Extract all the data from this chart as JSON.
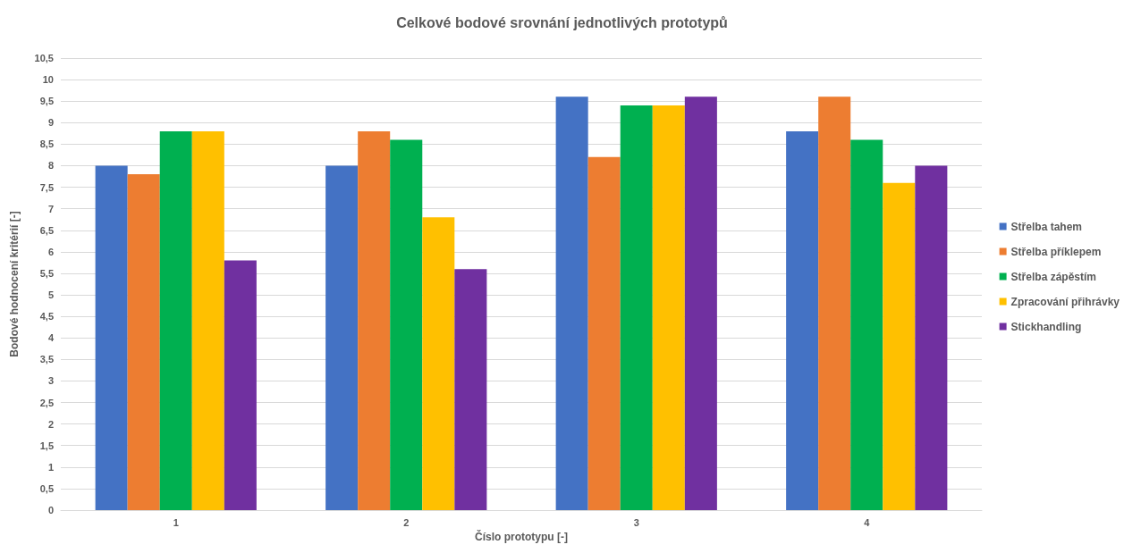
{
  "chart_data": {
    "type": "bar",
    "title": "Celkové bodové srovnání jednotlivých prototypů",
    "xlabel": "Číslo prototypu [-]",
    "ylabel": "Bodové hodnocení kritérií [-]",
    "categories": [
      "1",
      "2",
      "3",
      "4"
    ],
    "series": [
      {
        "name": "Střelba tahem",
        "color": "#4472c4",
        "values": [
          8,
          8,
          9.6,
          8.8
        ]
      },
      {
        "name": "Střelba příklepem",
        "color": "#ed7d31",
        "values": [
          7.8,
          8.8,
          8.2,
          9.6
        ]
      },
      {
        "name": "Střelba zápěstím",
        "color": "#00b050",
        "values": [
          8.8,
          8.6,
          9.4,
          8.6
        ]
      },
      {
        "name": "Zpracování přihrávky",
        "color": "#ffc000",
        "values": [
          8.8,
          6.8,
          9.4,
          7.6
        ]
      },
      {
        "name": "Stickhandling",
        "color": "#7030a0",
        "values": [
          5.8,
          5.6,
          9.6,
          8
        ]
      }
    ],
    "ylim": [
      0,
      10.5
    ],
    "yticks": [
      0,
      {
        "value": 0.5,
        "label": "0,5"
      },
      1,
      {
        "value": 1.5,
        "label": "1,5"
      },
      2,
      {
        "value": 2.5,
        "label": "2,5"
      },
      3,
      {
        "value": 3.5,
        "label": "3,5"
      },
      4,
      {
        "value": 4.5,
        "label": "4,5"
      },
      5,
      {
        "value": 5.5,
        "label": "5,5"
      },
      6,
      {
        "value": 6.5,
        "label": "6,5"
      },
      7,
      {
        "value": 7.5,
        "label": "7,5"
      },
      8,
      {
        "value": 8.5,
        "label": "8,5"
      },
      9,
      {
        "value": 9.5,
        "label": "9,5"
      },
      10,
      {
        "value": 10.5,
        "label": "10,5"
      }
    ],
    "grid": "y",
    "legend": "right"
  }
}
